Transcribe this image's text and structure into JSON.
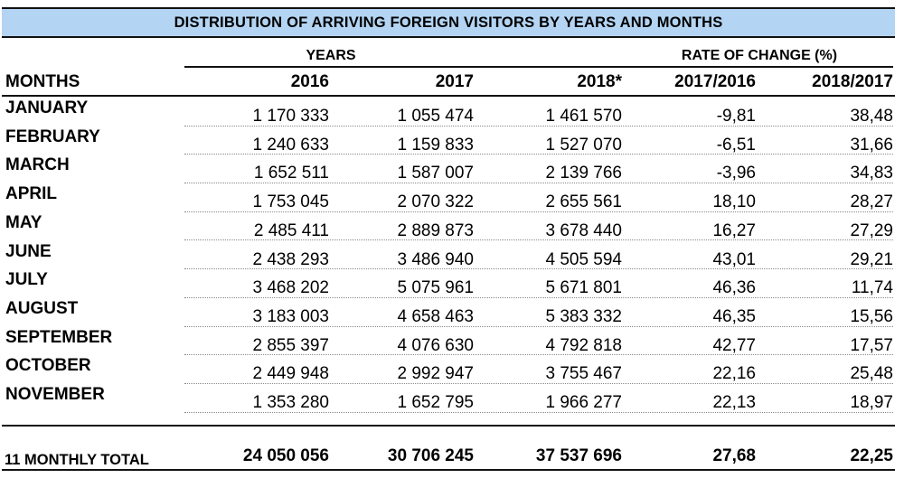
{
  "title": "DISTRIBUTION OF ARRIVING FOREIGN VISITORS BY YEARS AND MONTHS",
  "group_headers": {
    "years": "YEARS",
    "rate": "RATE OF CHANGE (%)"
  },
  "columns": {
    "months": "MONTHS",
    "y2016": "2016",
    "y2017": "2017",
    "y2018": "2018*",
    "r1716": "2017/2016",
    "r1817": "2018/2017"
  },
  "rows": [
    {
      "month": "JANUARY",
      "y2016": "1 170 333",
      "y2017": "1 055 474",
      "y2018": "1 461 570",
      "r1716": "-9,81",
      "r1817": "38,48"
    },
    {
      "month": "FEBRUARY",
      "y2016": "1 240 633",
      "y2017": "1 159 833",
      "y2018": "1 527 070",
      "r1716": "-6,51",
      "r1817": "31,66"
    },
    {
      "month": "MARCH",
      "y2016": "1 652 511",
      "y2017": "1 587 007",
      "y2018": "2 139 766",
      "r1716": "-3,96",
      "r1817": "34,83"
    },
    {
      "month": "APRIL",
      "y2016": "1 753 045",
      "y2017": "2 070 322",
      "y2018": "2 655 561",
      "r1716": "18,10",
      "r1817": "28,27"
    },
    {
      "month": "MAY",
      "y2016": "2 485 411",
      "y2017": "2 889 873",
      "y2018": "3 678 440",
      "r1716": "16,27",
      "r1817": "27,29"
    },
    {
      "month": "JUNE",
      "y2016": "2 438 293",
      "y2017": "3 486 940",
      "y2018": "4 505 594",
      "r1716": "43,01",
      "r1817": "29,21"
    },
    {
      "month": "JULY",
      "y2016": "3 468 202",
      "y2017": "5 075 961",
      "y2018": "5 671 801",
      "r1716": "46,36",
      "r1817": "11,74"
    },
    {
      "month": "AUGUST",
      "y2016": "3 183 003",
      "y2017": "4 658 463",
      "y2018": "5 383 332",
      "r1716": "46,35",
      "r1817": "15,56"
    },
    {
      "month": "SEPTEMBER",
      "y2016": "2 855 397",
      "y2017": "4 076 630",
      "y2018": "4 792 818",
      "r1716": "42,77",
      "r1817": "17,57"
    },
    {
      "month": "OCTOBER",
      "y2016": "2 449 948",
      "y2017": "2 992 947",
      "y2018": "3 755 467",
      "r1716": "22,16",
      "r1817": "25,48"
    },
    {
      "month": "NOVEMBER",
      "y2016": "1 353 280",
      "y2017": "1 652 795",
      "y2018": "1 966 277",
      "r1716": "22,13",
      "r1817": "18,97"
    }
  ],
  "total": {
    "label": "11 MONTHLY TOTAL",
    "y2016": "24 050 056",
    "y2017": "30 706 245",
    "y2018": "37 537 696",
    "r1716": "27,68",
    "r1817": "22,25"
  },
  "colors": {
    "title_background": "#b3d4f2",
    "rules": "#111111"
  }
}
